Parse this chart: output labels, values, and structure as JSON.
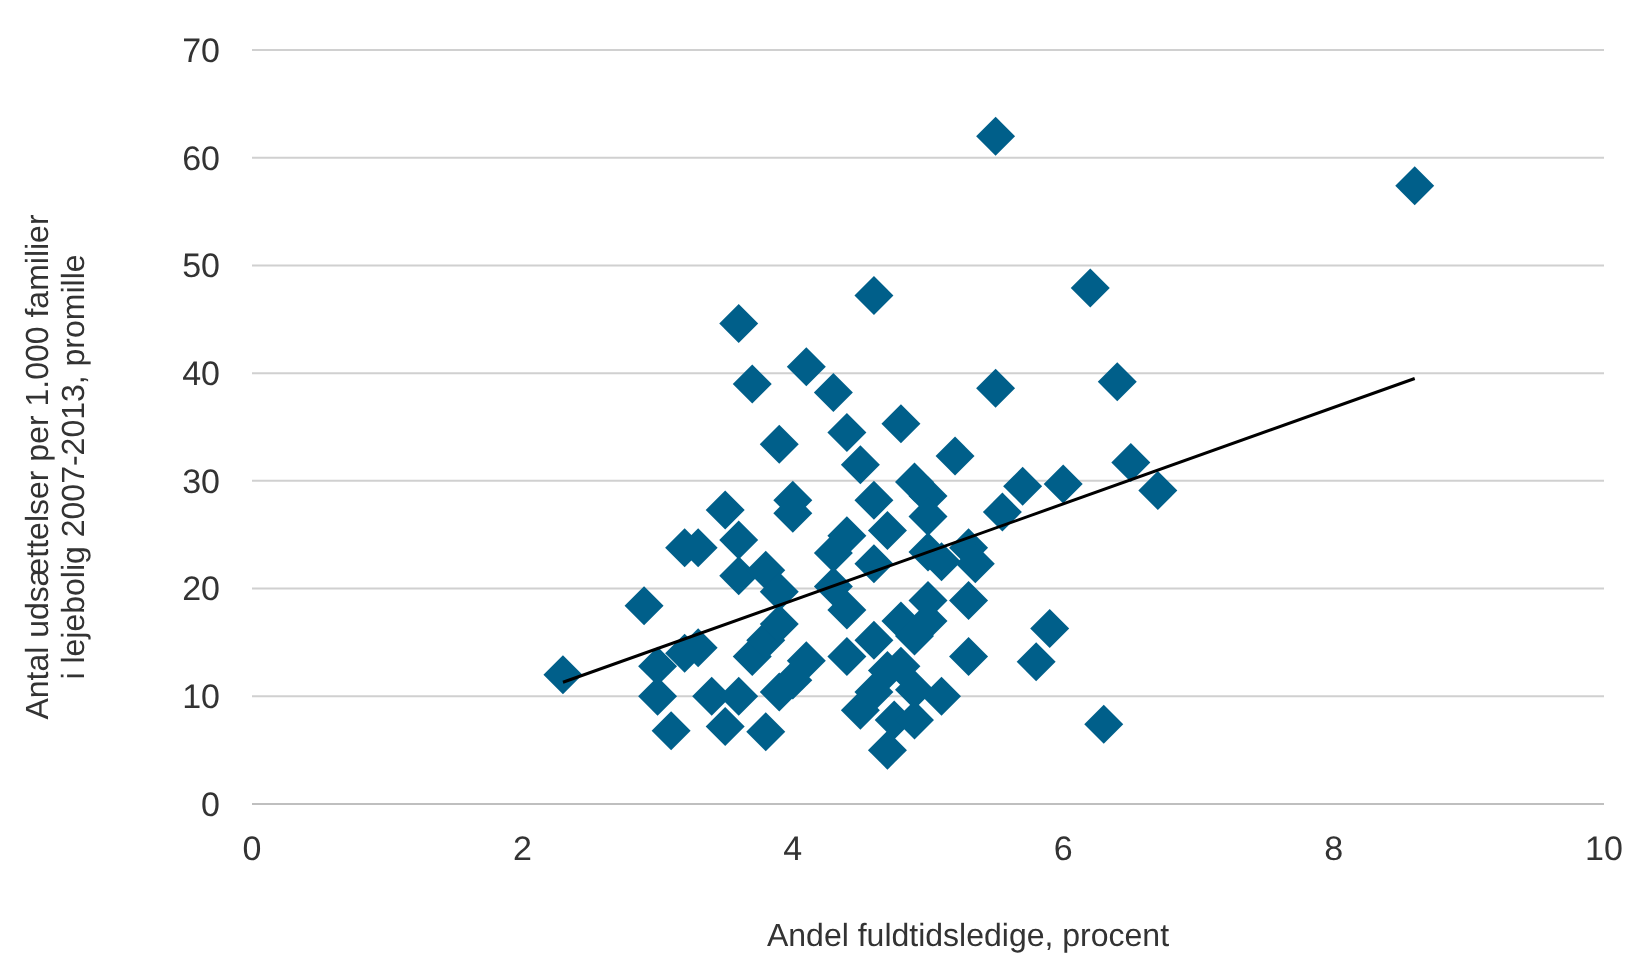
{
  "chart_data": {
    "type": "scatter",
    "xlabel": "Andel fuldtidsledige, procent",
    "ylabel": "Antal udsættelser per 1.000 familier i lejebolig 2007-2013, promille",
    "xlim": [
      0,
      10
    ],
    "xticks": [
      0,
      2,
      4,
      6,
      8,
      10
    ],
    "ylim": [
      0,
      70
    ],
    "yticks": [
      0,
      10,
      20,
      30,
      40,
      50,
      60,
      70
    ],
    "grid": "y",
    "series": [
      {
        "color": "#005f8a",
        "marker": "diamond",
        "x": [
          2.3,
          2.9,
          3.0,
          3.0,
          3.1,
          3.2,
          3.2,
          3.3,
          3.3,
          3.4,
          3.5,
          3.5,
          3.6,
          3.6,
          3.6,
          3.6,
          3.7,
          3.7,
          3.8,
          3.8,
          3.8,
          3.9,
          3.9,
          3.9,
          3.9,
          4.0,
          4.0,
          4.0,
          4.1,
          4.1,
          4.3,
          4.3,
          4.3,
          4.4,
          4.4,
          4.4,
          4.4,
          4.5,
          4.5,
          4.6,
          4.6,
          4.6,
          4.6,
          4.6,
          4.7,
          4.7,
          4.7,
          4.75,
          4.8,
          4.8,
          4.8,
          4.9,
          4.9,
          4.9,
          4.9,
          5.0,
          5.0,
          5.0,
          5.0,
          5.0,
          5.1,
          5.1,
          5.2,
          5.3,
          5.3,
          5.3,
          5.35,
          5.5,
          5.5,
          5.55,
          5.7,
          5.8,
          5.9,
          6.0,
          6.2,
          6.3,
          6.4,
          6.5,
          6.7,
          8.6
        ],
        "values": [
          12,
          18.4,
          12.8,
          10,
          6.8,
          14,
          23.8,
          23.8,
          14.5,
          10,
          27.3,
          7.2,
          44.6,
          24.5,
          21.2,
          10,
          39,
          13.7,
          6.7,
          21.7,
          15.2,
          33.4,
          19.7,
          10.4,
          16.7,
          28.2,
          27,
          11.5,
          40.6,
          13.3,
          38.2,
          20.2,
          23.3,
          34.5,
          18,
          13.7,
          24.9,
          31.5,
          8.7,
          47.2,
          28.2,
          22.3,
          15.2,
          10.4,
          25.4,
          5,
          12.4,
          7.8,
          35.3,
          17,
          12.8,
          29.9,
          7.8,
          15.6,
          10.6,
          28.6,
          26.7,
          23.4,
          18.9,
          17,
          22.5,
          10,
          32.3,
          23.8,
          13.7,
          18.9,
          22.3,
          62,
          38.6,
          27.1,
          29.5,
          13.2,
          16.3,
          29.7,
          47.9,
          7.4,
          39.2,
          31.7,
          29.1,
          57.4
        ]
      },
      {
        "type": "line",
        "color": "#000000",
        "marker": "none",
        "x": [
          2.3,
          8.6
        ],
        "values": [
          11.3,
          39.5
        ]
      }
    ]
  }
}
